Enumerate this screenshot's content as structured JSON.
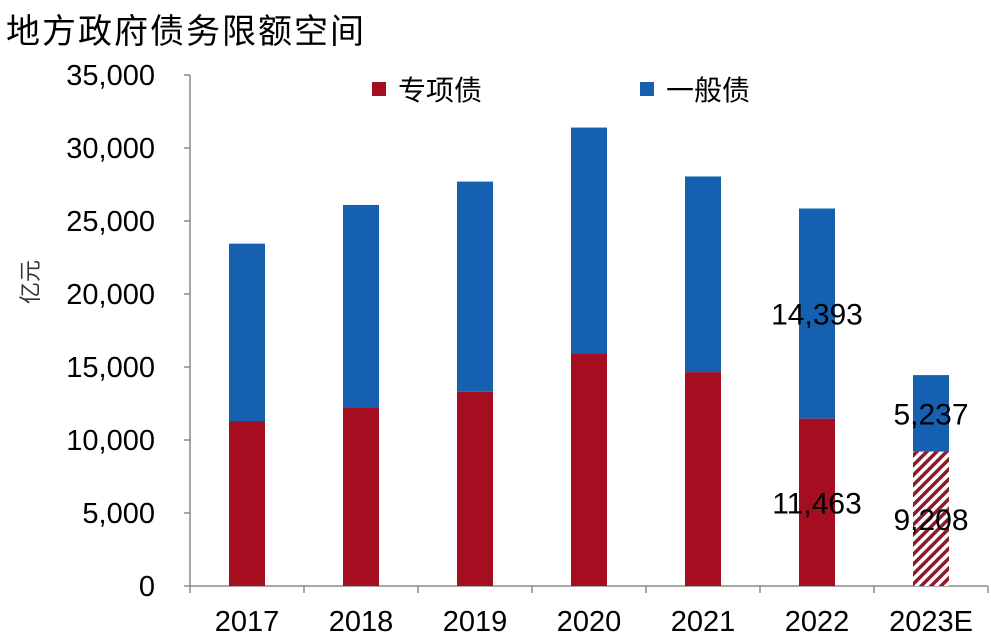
{
  "chart_data": {
    "type": "bar",
    "stacked": true,
    "title": "地方政府债务限额空间",
    "ylabel": "亿元",
    "xlabel": "",
    "ylim": [
      0,
      35000
    ],
    "yticks": [
      0,
      5000,
      10000,
      15000,
      20000,
      25000,
      30000,
      35000
    ],
    "ytick_labels": [
      "0",
      "5,000",
      "10,000",
      "15,000",
      "20,000",
      "25,000",
      "30,000",
      "35,000"
    ],
    "categories": [
      "2017",
      "2018",
      "2019",
      "2020",
      "2021",
      "2022",
      "2023E"
    ],
    "series": [
      {
        "name": "专项债",
        "color": "#A50D20",
        "values": [
          11300,
          12250,
          13300,
          15950,
          14650,
          11463,
          9208
        ],
        "hatched": [
          false,
          false,
          false,
          false,
          false,
          false,
          true
        ]
      },
      {
        "name": "一般债",
        "color": "#1560B0",
        "values": [
          12150,
          13850,
          14400,
          15450,
          13400,
          14393,
          5237
        ],
        "hatched": [
          false,
          false,
          false,
          false,
          false,
          false,
          false
        ]
      }
    ],
    "data_labels": [
      {
        "category": "2022",
        "series": "一般债",
        "text": "14,393"
      },
      {
        "category": "2022",
        "series": "专项债",
        "text": "11,463"
      },
      {
        "category": "2023E",
        "series": "一般债",
        "text": "5,237"
      },
      {
        "category": "2023E",
        "series": "专项债",
        "text": "9,208"
      }
    ],
    "legend_position": "top",
    "grid": false
  }
}
